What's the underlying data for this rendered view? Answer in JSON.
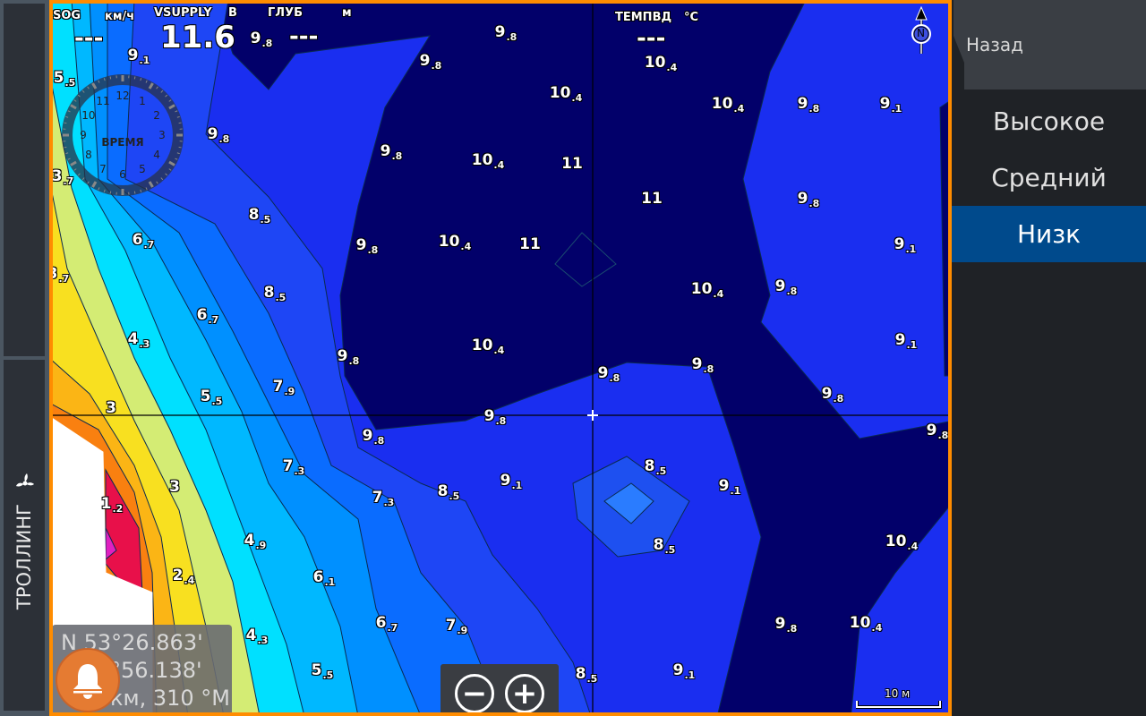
{
  "sidebar": {
    "mode_label": "ТРОЛЛИНГ",
    "mode_icon": "propeller-icon"
  },
  "overlay": {
    "sog": {
      "label": "SOG",
      "unit": "км/ч",
      "value": "---"
    },
    "vsupply": {
      "label": "VSUPPLY",
      "unit": "В",
      "value": "11.6"
    },
    "depth": {
      "label": "ГЛУБ",
      "unit": "м",
      "value": "---"
    },
    "water_temp": {
      "label": "ТЕМПВД",
      "unit": "°C",
      "value": "---"
    },
    "clock": {
      "label": "ВРЕМЯ",
      "hours": [
        "12",
        "1",
        "2",
        "3",
        "4",
        "5",
        "6",
        "7",
        "8",
        "9",
        "10",
        "11"
      ]
    },
    "north_label": "N"
  },
  "position": {
    "lat": "N  53°26.863'",
    "lon": "°56.138'",
    "range": "км, 310 °M"
  },
  "zoom": {
    "out": "−",
    "in": "+"
  },
  "scale": {
    "label": "10 м"
  },
  "depth_labels": [
    "9.1",
    "5.5",
    "9.8",
    "3.7",
    "8.5",
    "6.7",
    "3.7",
    "8.5",
    "6.7",
    "4.3",
    "9.8",
    "7.9",
    "5.5",
    "3",
    "9.8",
    "9.8",
    "7.3",
    "3",
    "1.2",
    "7.3",
    "8.5",
    "9.1",
    "4.9",
    "2.4",
    "6.1",
    "6.7",
    "7.9",
    "4.3",
    "5.5",
    "8.5",
    "9.1",
    "9.8",
    "10.4",
    "10.4",
    "8.5",
    "8.5",
    "9.1",
    "9.8",
    "9.8",
    "9.8",
    "9.8",
    "10.4",
    "9.1",
    "10.4",
    "9.8",
    "9.1",
    "9.8",
    "11",
    "11",
    "9.8",
    "10.4",
    "10.4",
    "11",
    "9.8",
    "10.4",
    "10.4",
    "9.8",
    "9.1",
    "9.8",
    "9.8",
    "10.4",
    "9.8"
  ],
  "menu": {
    "back": "Назад",
    "options": [
      "Высокое",
      "Средний",
      "Низк"
    ],
    "selected": 2
  },
  "colors": {
    "border": "#ff8c00",
    "selected": "#004a8c",
    "deep": "#02006a",
    "alarm": "#e57b32"
  }
}
